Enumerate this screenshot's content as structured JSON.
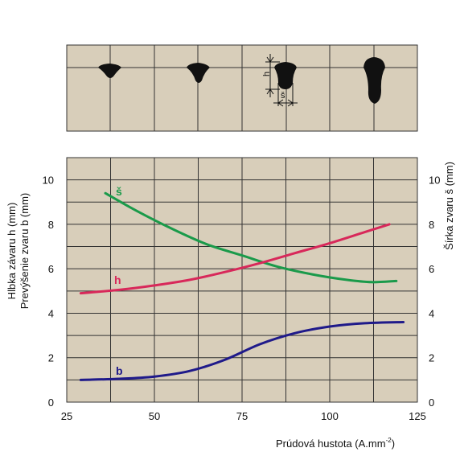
{
  "chart_data": [
    {
      "type": "diagram",
      "annotations": {
        "h_label": "h",
        "s_label": "š"
      }
    },
    {
      "type": "line",
      "xlabel": "Prúdová hustota (A.mm",
      "xlabel_sup": "-2",
      "xlabel_end": ")",
      "ylabel_left_line1": "Hlbka závaru h (mm)",
      "ylabel_left_line2": "Prevýšenie zvaru b (mm)",
      "ylabel_right": "Šírka zvaru š (mm)",
      "xlim": [
        25,
        125
      ],
      "ylim_left": [
        0,
        11
      ],
      "ylim_right": [
        0,
        11
      ],
      "x_ticks": [
        "25",
        "50",
        "75",
        "100",
        "125"
      ],
      "y_ticks_left": [
        "0",
        "2",
        "4",
        "6",
        "8",
        "10"
      ],
      "y_ticks_right": [
        "0",
        "2",
        "4",
        "6",
        "8",
        "10"
      ],
      "grid": true,
      "background_color": "#d8ceba",
      "series": [
        {
          "name": "š",
          "color": "#1a9a4a",
          "x": [
            36,
            45,
            55,
            65,
            75,
            85,
            95,
            105,
            112,
            119
          ],
          "y": [
            9.4,
            8.6,
            7.8,
            7.1,
            6.6,
            6.1,
            5.75,
            5.5,
            5.4,
            5.45
          ]
        },
        {
          "name": "h",
          "color": "#d8285a",
          "x": [
            29,
            40,
            50,
            60,
            70,
            80,
            90,
            100,
            110,
            117
          ],
          "y": [
            4.9,
            5.05,
            5.25,
            5.5,
            5.85,
            6.25,
            6.7,
            7.15,
            7.65,
            8.0
          ]
        },
        {
          "name": "b",
          "color": "#1f1a8a",
          "x": [
            29,
            40,
            50,
            60,
            70,
            80,
            90,
            100,
            110,
            121
          ],
          "y": [
            1.0,
            1.05,
            1.15,
            1.4,
            1.9,
            2.6,
            3.1,
            3.4,
            3.55,
            3.6
          ]
        }
      ]
    }
  ]
}
